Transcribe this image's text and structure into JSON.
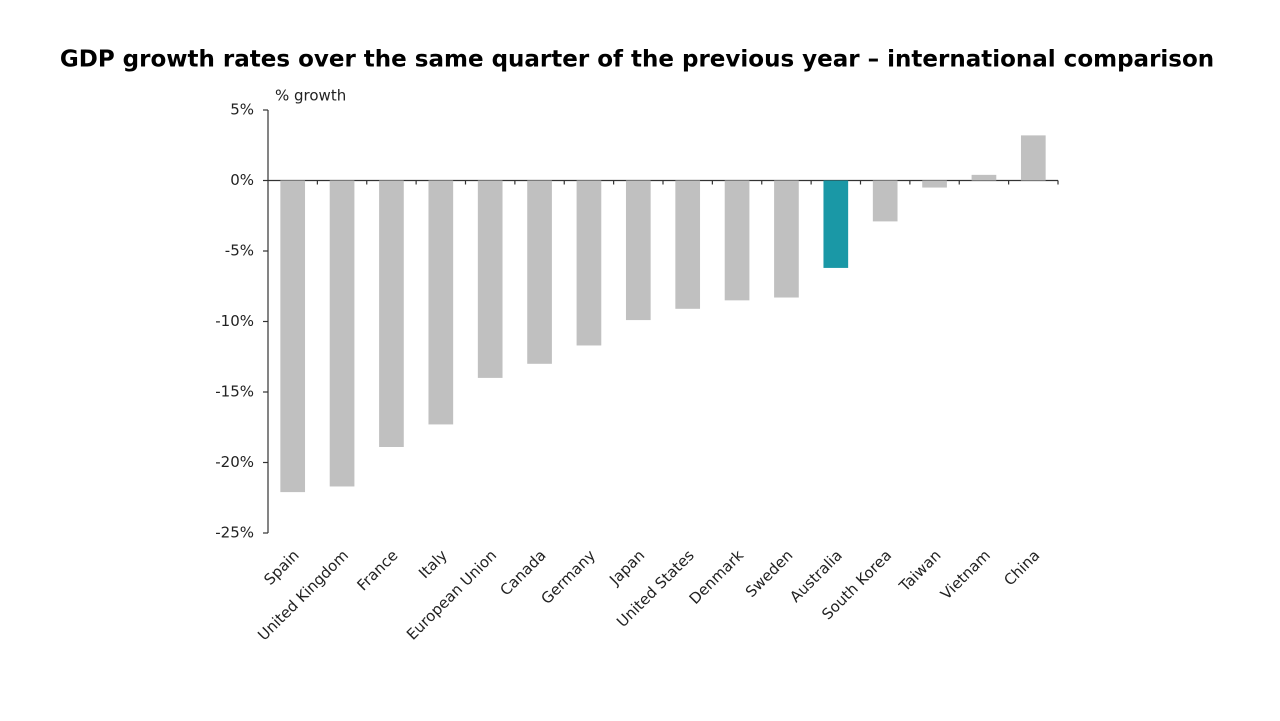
{
  "chart_data": {
    "type": "bar",
    "title": "GDP growth rates over the same quarter of the previous year – international comparison",
    "y_axis_label": "% growth",
    "categories": [
      "Spain",
      "United Kingdom",
      "France",
      "Italy",
      "European Union",
      "Canada",
      "Germany",
      "Japan",
      "United States",
      "Denmark",
      "Sweden",
      "Australia",
      "South Korea",
      "Taiwan",
      "Vietnam",
      "China"
    ],
    "values": [
      -22.1,
      -21.7,
      -18.9,
      -17.3,
      -14.0,
      -13.0,
      -11.7,
      -9.9,
      -9.1,
      -8.5,
      -8.3,
      -6.2,
      -2.9,
      -0.5,
      0.4,
      3.2
    ],
    "colors": [
      "#c0c0c0",
      "#c0c0c0",
      "#c0c0c0",
      "#c0c0c0",
      "#c0c0c0",
      "#c0c0c0",
      "#c0c0c0",
      "#c0c0c0",
      "#c0c0c0",
      "#c0c0c0",
      "#c0c0c0",
      "#1a98a6",
      "#c0c0c0",
      "#c0c0c0",
      "#c0c0c0",
      "#c0c0c0"
    ],
    "ylim": [
      -25,
      5
    ],
    "yticks": [
      {
        "value": 5,
        "label": "5%"
      },
      {
        "value": 0,
        "label": "0%"
      },
      {
        "value": -5,
        "label": "-5%"
      },
      {
        "value": -10,
        "label": "-10%"
      },
      {
        "value": -15,
        "label": "-15%"
      },
      {
        "value": -20,
        "label": "-20%"
      },
      {
        "value": -25,
        "label": "-25%"
      }
    ],
    "grid": false
  }
}
